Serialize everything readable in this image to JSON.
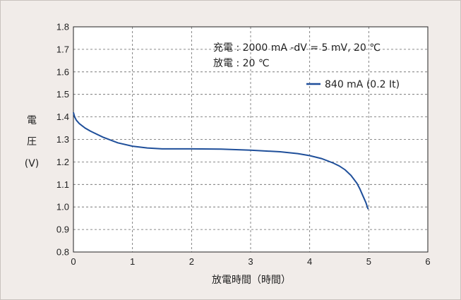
{
  "chart_data": {
    "type": "line",
    "xlabel": "放電時間（時間）",
    "ylabel_chars": [
      "電",
      "圧",
      "(V)"
    ],
    "xlim": [
      0,
      6
    ],
    "ylim": [
      0.8,
      1.8
    ],
    "xticks": [
      0,
      1,
      2,
      3,
      4,
      5,
      6
    ],
    "yticks": [
      0.8,
      0.9,
      1.0,
      1.1,
      1.2,
      1.3,
      1.4,
      1.5,
      1.6,
      1.7,
      1.8
    ],
    "grid": true,
    "annotations": [
      "充電 : 2000 mA -dV = 5 mV, 20 ℃",
      "放電 : 20 ℃"
    ],
    "legend_position": "top-right",
    "series": [
      {
        "name": "840 mA (0.2 It)",
        "color": "#1f4f9a",
        "x": [
          0.0,
          0.02,
          0.05,
          0.1,
          0.2,
          0.3,
          0.5,
          0.75,
          1.0,
          1.25,
          1.5,
          2.0,
          2.5,
          3.0,
          3.5,
          3.8,
          4.0,
          4.2,
          4.4,
          4.5,
          4.6,
          4.7,
          4.8,
          4.85,
          4.9,
          4.95,
          4.99
        ],
        "y": [
          1.42,
          1.4,
          1.385,
          1.37,
          1.35,
          1.335,
          1.31,
          1.285,
          1.27,
          1.262,
          1.258,
          1.258,
          1.257,
          1.252,
          1.245,
          1.237,
          1.228,
          1.215,
          1.195,
          1.182,
          1.165,
          1.14,
          1.105,
          1.08,
          1.05,
          1.02,
          0.99
        ]
      }
    ]
  }
}
